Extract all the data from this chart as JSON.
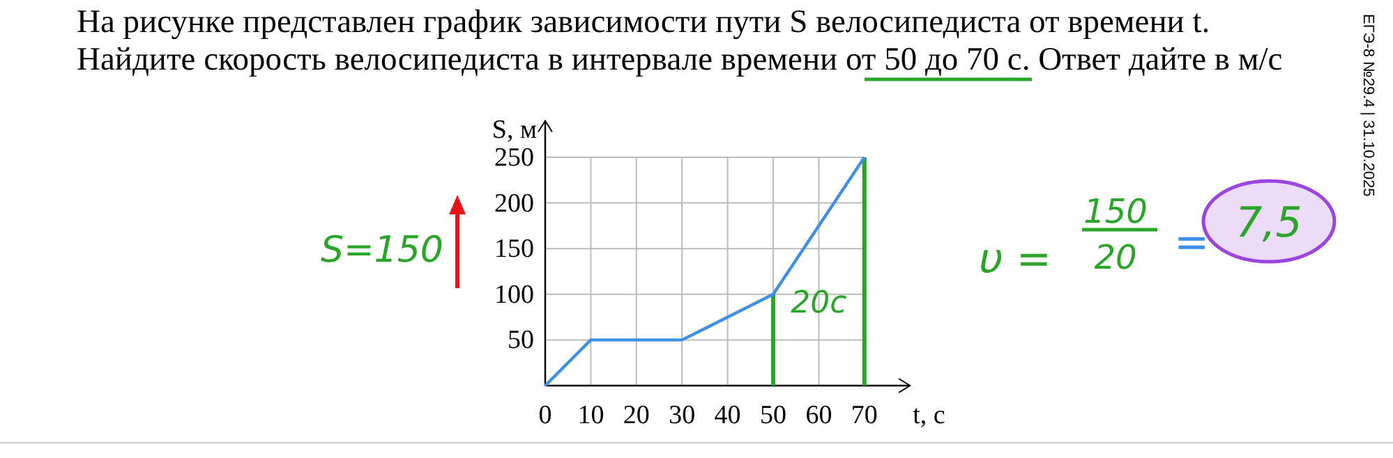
{
  "chart_data": {
    "type": "line",
    "title": "На рисунке представлен график зависимости пути S велосипедиста от времени t.",
    "subtitle": "Найдите скорость велосипедиста в интервале времени от 50 до 70 с. Ответ дайте в м/с",
    "xlabel": "t, с",
    "ylabel": "S, м",
    "x": [
      0,
      10,
      30,
      50,
      70
    ],
    "series": [
      {
        "color": "#3d8fe8",
        "values": [
          0,
          50,
          50,
          100,
          250
        ]
      }
    ],
    "xlim": [
      0,
      80
    ],
    "ylim": [
      0,
      290
    ],
    "xticks": [
      0,
      10,
      20,
      30,
      40,
      50,
      60,
      70
    ],
    "yticks": [
      50,
      100,
      150,
      200,
      250
    ],
    "grid": true,
    "marker": "none",
    "line_style": "solid",
    "ref_lines": [
      {
        "axis": "x",
        "value": 50,
        "color": "#2aa52a"
      },
      {
        "axis": "x",
        "value": 70,
        "color": "#2aa52a"
      }
    ],
    "annotations": [
      "ЕГЭ-8 №29.4 | 31.10.2025",
      "20с",
      "S=150",
      "υ =",
      "150",
      "20",
      "=",
      "7,5"
    ]
  }
}
